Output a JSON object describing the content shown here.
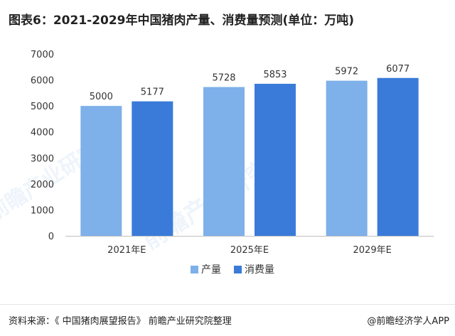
{
  "title": "图表6：2021-2029年中国猪肉产量、消费量预测(单位：万吨)",
  "source": "资料来源：《 中国猪肉展望报告》 前瞻产业研究院整理",
  "brand": "@前瞻经济学人APP",
  "watermark": "前瞻产业研究院",
  "chart_data": {
    "type": "bar",
    "categories": [
      "2021年E",
      "2025年E",
      "2029年E"
    ],
    "series": [
      {
        "name": "产量",
        "values": [
          5000,
          5728,
          5972
        ],
        "color": "#7EB0EA"
      },
      {
        "name": "消费量",
        "values": [
          5177,
          5853,
          6077
        ],
        "color": "#3A7BD9"
      }
    ],
    "ylim": [
      0,
      7000
    ],
    "yticks": [
      0,
      1000,
      2000,
      3000,
      4000,
      5000,
      6000,
      7000
    ],
    "legend": "bottom",
    "grid": false
  }
}
